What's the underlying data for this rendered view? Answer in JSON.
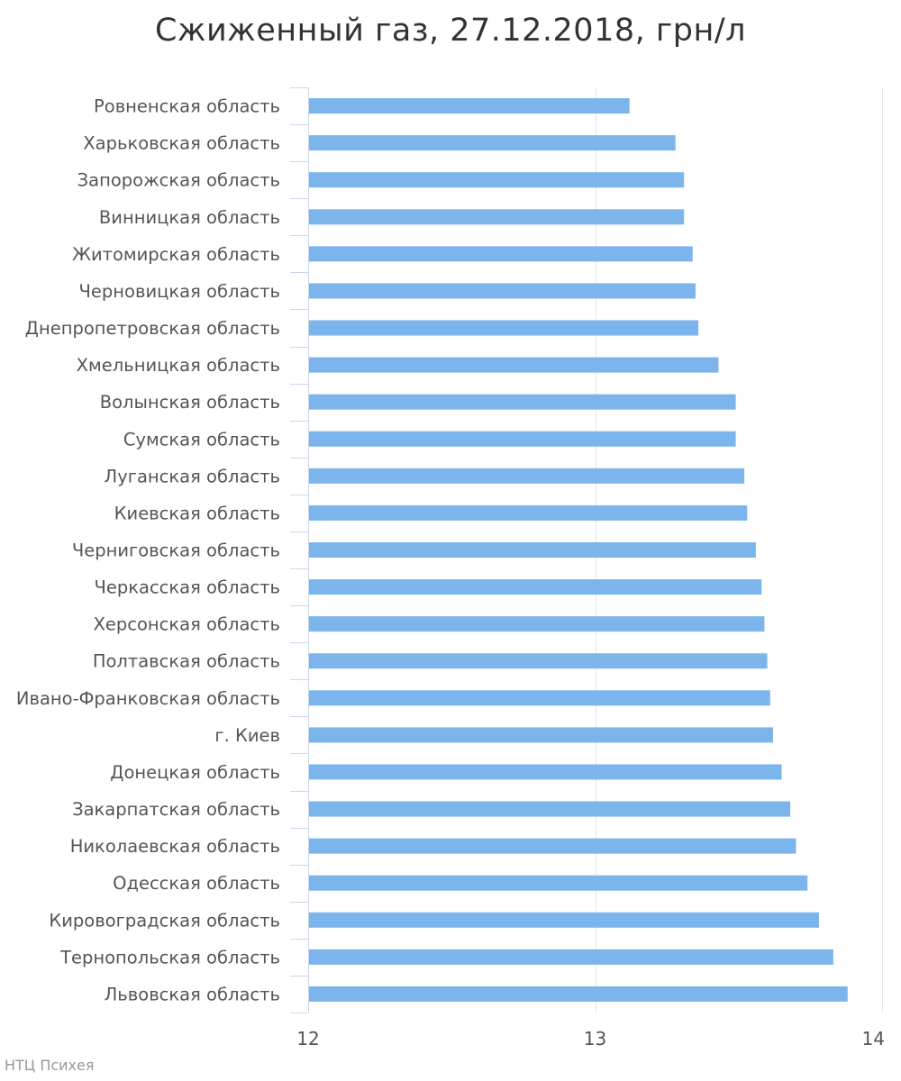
{
  "chart_data": {
    "type": "bar",
    "orientation": "horizontal",
    "title": "Сжиженный газ, 27.12.2018, грн/л",
    "xlabel": "",
    "ylabel": "",
    "xlim": [
      12,
      14
    ],
    "xticks": [
      "12",
      "13",
      "14"
    ],
    "xtick_values": [
      12,
      13,
      14
    ],
    "grid": true,
    "bar_color": "#7cb5ec",
    "categories": [
      "Ровненская область",
      "Харьковская область",
      "Запорожская область",
      "Винницкая область",
      "Житомирская область",
      "Черновицкая область",
      "Днепропетровская область",
      "Хмельницкая область",
      "Волынская область",
      "Сумская область",
      "Луганская область",
      "Киевская область",
      "Черниговская область",
      "Черкасская область",
      "Херсонская область",
      "Полтавская область",
      "Ивано-Франковская область",
      "г. Киев",
      "Донецкая область",
      "Закарпатская область",
      "Николаевская область",
      "Одесская область",
      "Кировоградская область",
      "Тернопольская область",
      "Львовская область"
    ],
    "values": [
      13.12,
      13.28,
      13.31,
      13.31,
      13.34,
      13.35,
      13.36,
      13.43,
      13.49,
      13.49,
      13.52,
      13.53,
      13.56,
      13.58,
      13.59,
      13.6,
      13.61,
      13.62,
      13.65,
      13.68,
      13.7,
      13.74,
      13.78,
      13.83,
      13.88
    ]
  },
  "credit": "НТЦ Психея"
}
